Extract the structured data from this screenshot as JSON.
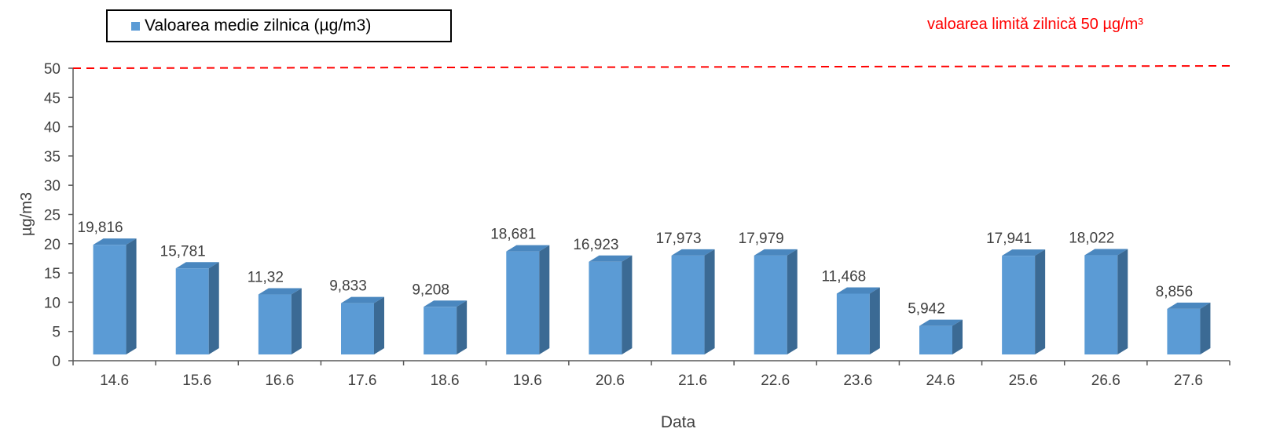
{
  "legend": {
    "label": "Valoarea medie zilnica (µg/m3)"
  },
  "limit": {
    "label": "valoarea limită zilnică 50 µg/m³",
    "value": 50,
    "color": "#ff0000"
  },
  "colors": {
    "bar_front": "#5b9bd5",
    "bar_top": "#4a87bf",
    "bar_side": "#3b6a94",
    "axis": "#595959",
    "text": "#404040"
  },
  "chart_data": {
    "type": "bar",
    "xlabel": "Data",
    "ylabel": "µg/m3",
    "ylim": [
      0,
      50
    ],
    "yticks": [
      0,
      5,
      10,
      15,
      20,
      25,
      30,
      35,
      40,
      45,
      50
    ],
    "categories": [
      "14.6",
      "15.6",
      "16.6",
      "17.6",
      "18.6",
      "19.6",
      "20.6",
      "21.6",
      "22.6",
      "23.6",
      "24.6",
      "25.6",
      "26.6",
      "27.6"
    ],
    "series": [
      {
        "name": "Valoarea medie zilnica (µg/m3)",
        "values": [
          19.816,
          15.781,
          11.32,
          9.833,
          9.208,
          18.681,
          16.923,
          17.973,
          17.979,
          11.468,
          5.942,
          17.941,
          18.022,
          8.856
        ],
        "labels": [
          "19,816",
          "15,781",
          "11,32",
          "9,833",
          "9,208",
          "18,681",
          "16,923",
          "17,973",
          "17,979",
          "11,468",
          "5,942",
          "17,941",
          "18,022",
          "8,856"
        ]
      }
    ],
    "reference_line": {
      "y": 50,
      "style": "dashed"
    },
    "grid": false,
    "legend_position": "top-left"
  }
}
